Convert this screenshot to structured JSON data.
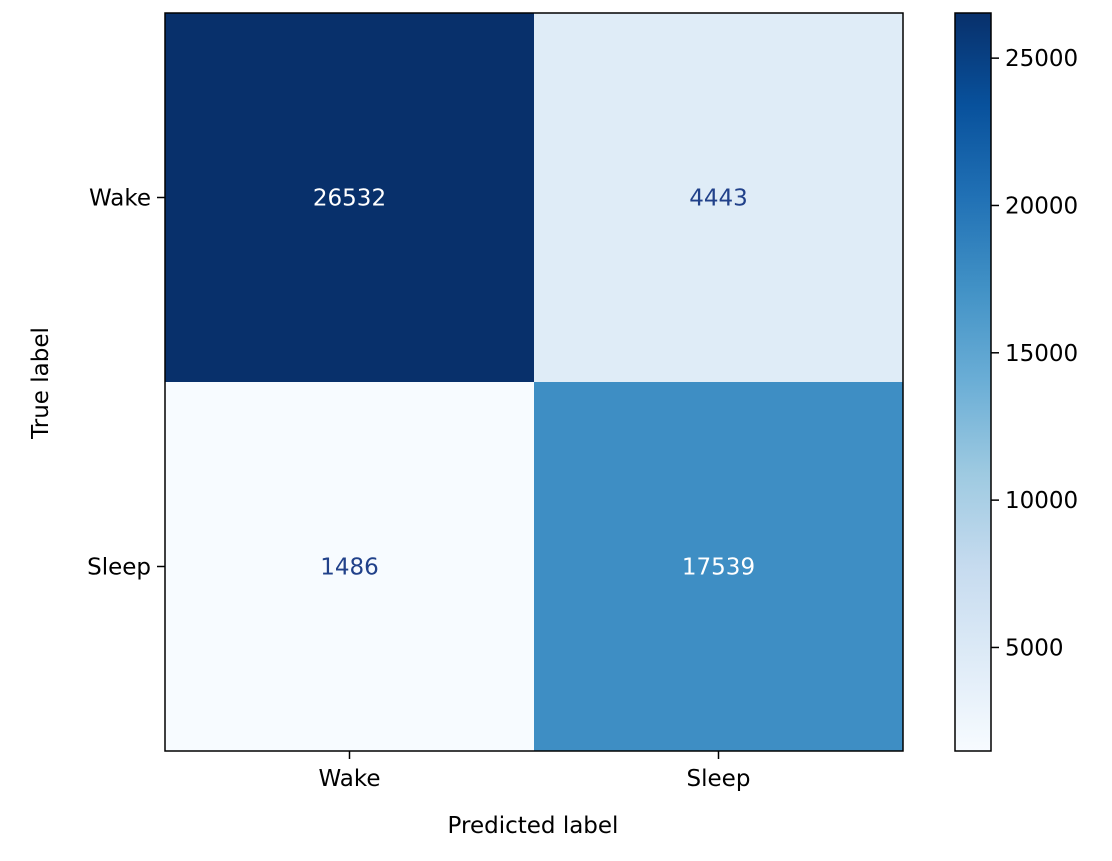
{
  "chart_data": {
    "type": "heatmap",
    "title": "",
    "xlabel": "Predicted label",
    "ylabel": "True label",
    "x_categories": [
      "Wake",
      "Sleep"
    ],
    "y_categories": [
      "Wake",
      "Sleep"
    ],
    "values": [
      [
        26532,
        4443
      ],
      [
        1486,
        17539
      ]
    ],
    "colormap": "Blues",
    "colorbar": {
      "range": [
        1486,
        26532
      ],
      "ticks": [
        5000,
        10000,
        15000,
        20000,
        25000
      ]
    },
    "colors": {
      "cell_high": "#162e62",
      "cell_mid": "#5389be",
      "cell_low_1": "#e3ecf7",
      "cell_low_2": "#f7fbff",
      "text_dark": "#ffffff",
      "text_light": "#21418a"
    }
  }
}
